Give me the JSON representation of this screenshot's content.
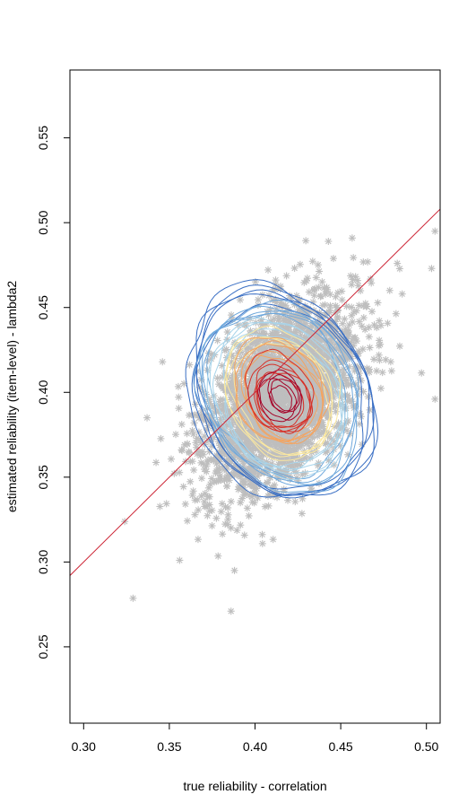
{
  "chart_data": {
    "type": "scatter",
    "title": "",
    "xlabel": "true reliability - correlation",
    "ylabel": "estimated reliability (item-level) - lambda2",
    "xlim": [
      0.292,
      0.508
    ],
    "ylim": [
      0.205,
      0.59
    ],
    "xticks": [
      "0.30",
      "0.35",
      "0.40",
      "0.45",
      "0.50"
    ],
    "yticks": [
      "0.25",
      "0.30",
      "0.35",
      "0.40",
      "0.45",
      "0.50",
      "0.55"
    ],
    "grid": false,
    "point_symbol": "asterisk",
    "point_color": "#bebebe",
    "cloud": {
      "center": [
        0.415,
        0.398
      ],
      "sd": [
        0.022,
        0.028
      ],
      "correlation": 0.45,
      "approx_points": 3000
    },
    "reference_line": {
      "slope": 1,
      "intercept": 0,
      "color": "#cc2233",
      "description": "identity line y = x"
    },
    "density_contours": {
      "palette": [
        "#3a6fc4",
        "#6fa8dc",
        "#a8d4ea",
        "#fbe8a0",
        "#f4a460",
        "#d73027",
        "#a50026"
      ],
      "levels": 7
    },
    "notable_points": [
      {
        "x": 0.386,
        "y": 0.271
      },
      {
        "x": 0.388,
        "y": 0.295
      },
      {
        "x": 0.356,
        "y": 0.301
      },
      {
        "x": 0.505,
        "y": 0.495
      },
      {
        "x": 0.505,
        "y": 0.396
      },
      {
        "x": 0.503,
        "y": 0.473
      },
      {
        "x": 0.483,
        "y": 0.476
      },
      {
        "x": 0.337,
        "y": 0.385
      },
      {
        "x": 0.346,
        "y": 0.418
      }
    ]
  }
}
